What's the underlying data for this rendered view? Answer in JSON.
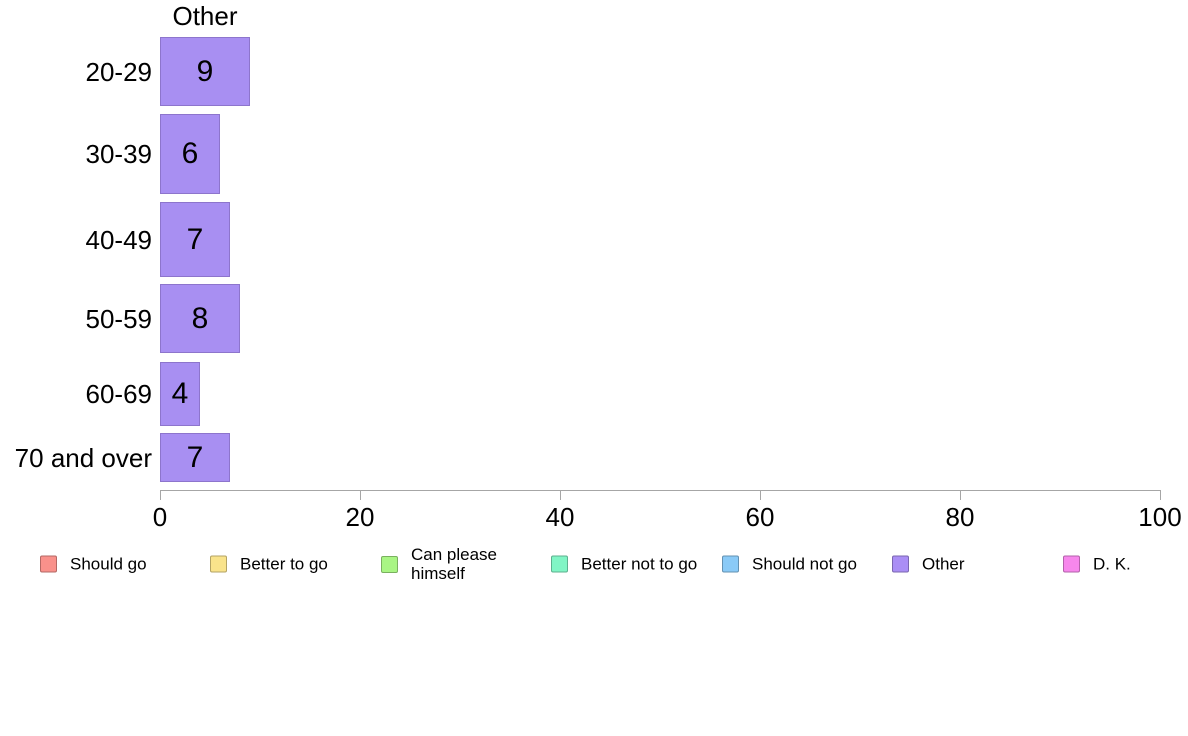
{
  "chart_data": {
    "type": "bar",
    "orientation": "horizontal",
    "title": "Other",
    "categories": [
      "20-29",
      "30-39",
      "40-49",
      "50-59",
      "60-69",
      "70 and over"
    ],
    "values": [
      9,
      6,
      7,
      8,
      4,
      7
    ],
    "xlabel": "",
    "ylabel": "",
    "xlim": [
      0,
      100
    ],
    "xticks": [
      "0",
      "20",
      "40",
      "60",
      "80",
      "100"
    ],
    "grid": false,
    "legend_position": "bottom",
    "bar_color": "#a88ff2",
    "bar_border_color": "#8d75cc",
    "axis_color": "#a6a6a6",
    "legend": [
      {
        "label": "Should go",
        "color": "#f9918b"
      },
      {
        "label": "Better to go",
        "color": "#f9e38b"
      },
      {
        "label": "Can please\nhimself",
        "color": "#a9f584"
      },
      {
        "label": "Better not to go",
        "color": "#81f5c5"
      },
      {
        "label": "Should not go",
        "color": "#8acaf7"
      },
      {
        "label": "Other",
        "color": "#aa8ef5"
      },
      {
        "label": "D. K.",
        "color": "#f787ec"
      }
    ]
  }
}
